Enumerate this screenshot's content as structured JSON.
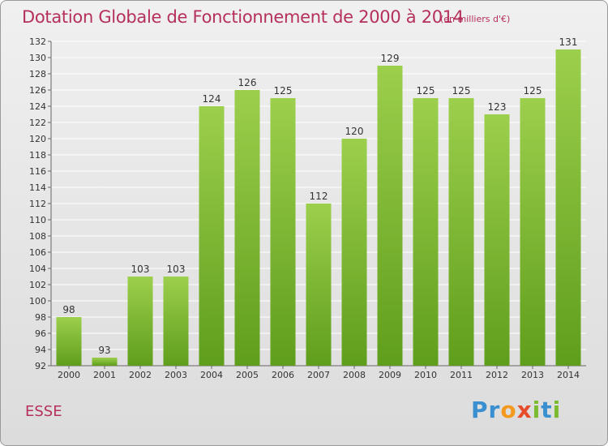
{
  "header": {
    "title": "Dotation Globale de Fonctionnement de 2000 à 2014",
    "subtitle": "(en milliers d'€)"
  },
  "footer": {
    "place": "ESSE",
    "logo": {
      "letters": [
        "P",
        "r",
        "o",
        "x",
        "i",
        "t",
        "i"
      ],
      "colors": [
        "#3a8fd0",
        "#3a8fd0",
        "#f39a1e",
        "#e84d2b",
        "#7bbb30",
        "#3a8fd0",
        "#7bbb30"
      ]
    }
  },
  "colors": {
    "bar_light": "#9ccf4c",
    "bar_dark": "#5f9e1c",
    "accent": "#b5305a",
    "grid": "#ffffff",
    "axis_text": "#333333"
  },
  "chart_data": {
    "type": "bar",
    "title": "Dotation Globale de Fonctionnement de 2000 à 2014",
    "subtitle": "(en milliers d'€)",
    "categories": [
      "2000",
      "2001",
      "2002",
      "2003",
      "2004",
      "2005",
      "2006",
      "2007",
      "2008",
      "2009",
      "2010",
      "2011",
      "2012",
      "2013",
      "2014"
    ],
    "values": [
      98,
      93,
      103,
      103,
      124,
      126,
      125,
      112,
      120,
      129,
      125,
      125,
      123,
      125,
      131
    ],
    "ylim": [
      92,
      132
    ],
    "yticks": [
      92,
      94,
      96,
      98,
      100,
      102,
      104,
      106,
      108,
      110,
      112,
      114,
      116,
      118,
      120,
      122,
      124,
      126,
      128,
      130,
      132
    ],
    "grid": true,
    "data_labels": true
  }
}
